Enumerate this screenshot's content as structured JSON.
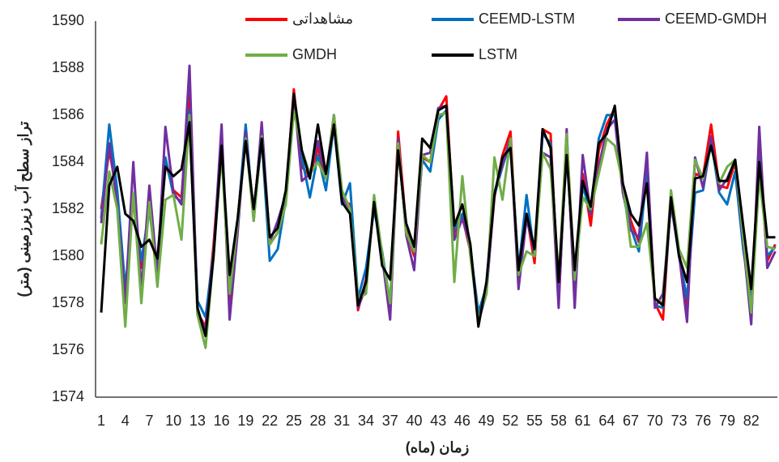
{
  "chart_data": {
    "type": "line",
    "y_label": "تراز سطح آب زیرزمینی (متر)",
    "x_label": "زمان (ماه)",
    "legend": "top",
    "ylim": [
      1574,
      1590
    ],
    "yticks": [
      1574,
      1576,
      1578,
      1580,
      1582,
      1584,
      1586,
      1588,
      1590
    ],
    "categories": [
      "1",
      null,
      null,
      "4",
      null,
      null,
      "7",
      null,
      null,
      "10",
      null,
      null,
      "13",
      null,
      null,
      "16",
      null,
      null,
      "19",
      null,
      null,
      "22",
      null,
      null,
      "25",
      null,
      null,
      "28",
      null,
      null,
      "31",
      null,
      null,
      "34",
      null,
      null,
      "37",
      null,
      null,
      "40",
      null,
      null,
      "43",
      null,
      null,
      "46",
      null,
      null,
      "49",
      null,
      null,
      "52",
      null,
      null,
      "55",
      null,
      null,
      "58",
      null,
      null,
      "61",
      null,
      null,
      "64",
      null,
      null,
      "67",
      null,
      null,
      "70",
      null,
      null,
      "73",
      null,
      null,
      "76",
      null,
      null,
      "79",
      null,
      null,
      "82",
      null,
      null,
      null
    ],
    "series": [
      {
        "name": "مشاهداتی",
        "color": "#ff0000",
        "values": [
          1582.0,
          1584.5,
          1582.6,
          1578.2,
          1582.6,
          1579.5,
          1582.2,
          1579.5,
          1584.0,
          1582.8,
          1582.5,
          1587.0,
          1577.6,
          1577.0,
          1580.5,
          1585.0,
          1578.0,
          1581.5,
          1585.3,
          1581.8,
          1585.4,
          1580.5,
          1581.0,
          1582.5,
          1587.1,
          1583.8,
          1583.4,
          1584.6,
          1583.3,
          1586.0,
          1582.4,
          1582.2,
          1577.7,
          1579.0,
          1582.2,
          1580.0,
          1577.8,
          1585.3,
          1581.2,
          1580.0,
          1584.2,
          1584.0,
          1586.2,
          1586.8,
          1581.0,
          1581.7,
          1580.2,
          1577.4,
          1578.6,
          1582.5,
          1584.3,
          1585.3,
          1579.0,
          1581.8,
          1579.7,
          1585.4,
          1585.2,
          1578.0,
          1585.0,
          1578.2,
          1583.5,
          1581.3,
          1584.5,
          1585.6,
          1586.3,
          1583.0,
          1581.5,
          1580.6,
          1584.0,
          1578.0,
          1577.3,
          1582.5,
          1580.2,
          1577.8,
          1583.5,
          1583.4,
          1585.6,
          1583.0,
          1582.9,
          1584.0,
          1580.5,
          1577.8,
          1584.5,
          1579.8,
          1580.5
        ]
      },
      {
        "name": "CEEMD-LSTM",
        "color": "#0070c0",
        "values": [
          1581.6,
          1585.6,
          1582.8,
          1578.6,
          1582.4,
          1579.8,
          1582.0,
          1579.2,
          1584.2,
          1582.6,
          1582.3,
          1586.2,
          1578.1,
          1577.4,
          1580.2,
          1584.6,
          1578.5,
          1581.4,
          1585.6,
          1581.6,
          1585.0,
          1579.8,
          1580.3,
          1582.4,
          1586.8,
          1584.2,
          1582.5,
          1584.3,
          1582.8,
          1585.6,
          1582.2,
          1583.1,
          1578.2,
          1579.5,
          1582.0,
          1580.2,
          1578.0,
          1584.8,
          1581.0,
          1580.2,
          1584.1,
          1583.6,
          1585.8,
          1586.2,
          1581.1,
          1581.8,
          1580.3,
          1577.6,
          1578.7,
          1582.6,
          1583.8,
          1584.9,
          1579.4,
          1582.6,
          1580.0,
          1585.2,
          1584.8,
          1578.5,
          1584.6,
          1578.8,
          1583.0,
          1581.8,
          1585.0,
          1586.0,
          1586.0,
          1582.9,
          1581.2,
          1580.2,
          1583.6,
          1577.9,
          1577.8,
          1582.3,
          1580.0,
          1578.2,
          1582.7,
          1582.8,
          1584.9,
          1582.7,
          1582.2,
          1583.6,
          1580.3,
          1578.0,
          1584.2,
          1580.0,
          1580.4
        ]
      },
      {
        "name": "CEEMD-GMDH",
        "color": "#7030a0",
        "values": [
          1581.4,
          1584.8,
          1582.2,
          1578.0,
          1584.0,
          1578.5,
          1583.0,
          1579.2,
          1585.5,
          1582.7,
          1582.2,
          1588.1,
          1577.5,
          1576.9,
          1580.1,
          1585.6,
          1577.3,
          1581.0,
          1585.3,
          1581.5,
          1585.7,
          1580.6,
          1581.5,
          1582.6,
          1586.9,
          1583.2,
          1583.5,
          1584.9,
          1583.4,
          1586.0,
          1582.5,
          1582.0,
          1577.8,
          1578.7,
          1582.4,
          1580.0,
          1577.3,
          1585.0,
          1580.9,
          1579.4,
          1584.3,
          1584.4,
          1586.3,
          1586.4,
          1580.7,
          1581.6,
          1580.4,
          1577.2,
          1578.4,
          1582.7,
          1583.9,
          1585.0,
          1578.6,
          1581.6,
          1580.2,
          1584.4,
          1584.2,
          1577.8,
          1585.4,
          1577.8,
          1584.3,
          1581.8,
          1583.8,
          1585.4,
          1585.8,
          1582.7,
          1581.1,
          1580.8,
          1584.4,
          1577.8,
          1578.4,
          1582.2,
          1580.1,
          1577.2,
          1584.2,
          1582.9,
          1585.1,
          1582.8,
          1583.3,
          1584.1,
          1580.6,
          1577.1,
          1585.5,
          1579.5,
          1580.2
        ]
      },
      {
        "name": "GMDH",
        "color": "#70ad47",
        "values": [
          1580.5,
          1583.6,
          1582.0,
          1577.0,
          1582.7,
          1578.0,
          1582.3,
          1578.7,
          1582.4,
          1582.6,
          1580.7,
          1586.0,
          1577.5,
          1576.1,
          1580.0,
          1584.4,
          1578.4,
          1581.4,
          1585.0,
          1581.5,
          1585.1,
          1580.5,
          1581.0,
          1582.2,
          1586.2,
          1584.5,
          1583.5,
          1584.0,
          1583.3,
          1586.0,
          1582.8,
          1582.0,
          1578.2,
          1578.4,
          1582.6,
          1580.1,
          1578.0,
          1584.8,
          1581.0,
          1580.2,
          1584.3,
          1584.0,
          1586.0,
          1586.1,
          1578.9,
          1583.4,
          1580.0,
          1577.3,
          1578.4,
          1584.2,
          1582.4,
          1585.0,
          1579.2,
          1580.2,
          1580.0,
          1584.4,
          1583.7,
          1579.0,
          1585.2,
          1579.0,
          1582.5,
          1582.0,
          1583.5,
          1585.0,
          1584.7,
          1583.1,
          1580.4,
          1580.4,
          1581.4,
          1578.2,
          1578.0,
          1582.8,
          1580.3,
          1579.5,
          1584.1,
          1583.3,
          1584.7,
          1583.1,
          1583.8,
          1584.1,
          1580.8,
          1577.6,
          1583.4,
          1580.4,
          1580.3
        ]
      },
      {
        "name": "LSTM",
        "color": "#000000",
        "values": [
          1577.6,
          1583.0,
          1583.8,
          1581.8,
          1581.5,
          1580.4,
          1580.7,
          1579.9,
          1583.8,
          1583.4,
          1583.7,
          1585.7,
          1577.8,
          1576.6,
          1580.0,
          1584.7,
          1579.2,
          1581.6,
          1584.9,
          1582.0,
          1585.0,
          1580.8,
          1581.2,
          1582.8,
          1586.9,
          1584.5,
          1583.3,
          1585.6,
          1583.5,
          1585.6,
          1582.3,
          1581.8,
          1577.9,
          1578.9,
          1582.3,
          1579.6,
          1579.0,
          1584.5,
          1581.4,
          1580.4,
          1585.0,
          1584.6,
          1586.2,
          1586.4,
          1581.3,
          1582.2,
          1580.5,
          1577.0,
          1578.9,
          1582.6,
          1584.2,
          1584.6,
          1579.4,
          1581.8,
          1580.3,
          1585.4,
          1584.6,
          1578.9,
          1584.3,
          1579.4,
          1583.2,
          1582.1,
          1584.8,
          1585.2,
          1586.4,
          1583.1,
          1581.8,
          1581.3,
          1583.1,
          1578.2,
          1577.9,
          1582.5,
          1580.0,
          1578.9,
          1583.3,
          1583.4,
          1584.7,
          1583.2,
          1583.2,
          1584.1,
          1581.3,
          1578.6,
          1584.0,
          1580.8,
          1580.8
        ]
      }
    ]
  }
}
